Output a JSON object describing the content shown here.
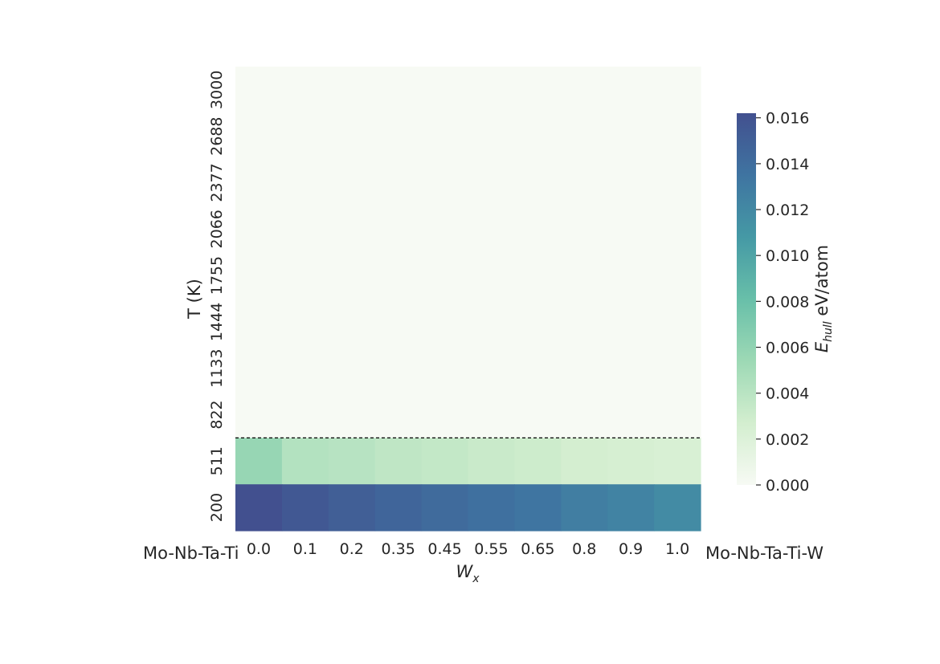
{
  "chart_data": {
    "type": "heatmap",
    "xlabel_base": "W",
    "xlabel_sub": "x",
    "ylabel": "T (K)",
    "x_categories": [
      "0.0",
      "0.1",
      "0.2",
      "0.35",
      "0.45",
      "0.55",
      "0.65",
      "0.8",
      "0.9",
      "1.0"
    ],
    "y_categories": [
      "3000",
      "2688",
      "2377",
      "2066",
      "1755",
      "1444",
      "1133",
      "822",
      "511",
      "200"
    ],
    "values": [
      [
        0,
        0,
        0,
        0,
        0,
        0,
        0,
        0,
        0,
        0
      ],
      [
        0,
        0,
        0,
        0,
        0,
        0,
        0,
        0,
        0,
        0
      ],
      [
        0,
        0,
        0,
        0,
        0,
        0,
        0,
        0,
        0,
        0
      ],
      [
        0,
        0,
        0,
        0,
        0,
        0,
        0,
        0,
        0,
        0
      ],
      [
        0,
        0,
        0,
        0,
        0,
        0,
        0,
        0,
        0,
        0
      ],
      [
        0,
        0,
        0,
        0,
        0,
        0,
        0,
        0,
        0,
        0
      ],
      [
        0,
        0,
        0,
        0,
        0,
        0,
        0,
        0,
        0,
        0
      ],
      [
        0,
        0,
        0,
        0,
        0,
        0,
        0,
        0,
        0,
        0
      ],
      [
        0.0057,
        0.0043,
        0.0041,
        0.0037,
        0.0035,
        0.0032,
        0.003,
        0.0026,
        0.0025,
        0.0023
      ],
      [
        0.0162,
        0.0156,
        0.0151,
        0.0146,
        0.0142,
        0.0138,
        0.0134,
        0.0128,
        0.0124,
        0.0118
      ]
    ],
    "colorbar": {
      "label_base": "E",
      "label_sub": "hull",
      "label_unit": " eV/atom",
      "vmin": 0.0,
      "vmax": 0.0162,
      "ticks": [
        "0.000",
        "0.002",
        "0.004",
        "0.006",
        "0.008",
        "0.010",
        "0.012",
        "0.014",
        "0.016"
      ],
      "colors": [
        "#f7faf4",
        "#d3eecf",
        "#9dd9b5",
        "#68bfa9",
        "#4599a5",
        "#3f74a1",
        "#42508f"
      ]
    },
    "dashed_line_between": [
      "822",
      "511"
    ],
    "end_labels": {
      "left": "Mo-Nb-Ta-Ti",
      "right": "Mo-Nb-Ta-Ti-W"
    },
    "grid": false
  }
}
